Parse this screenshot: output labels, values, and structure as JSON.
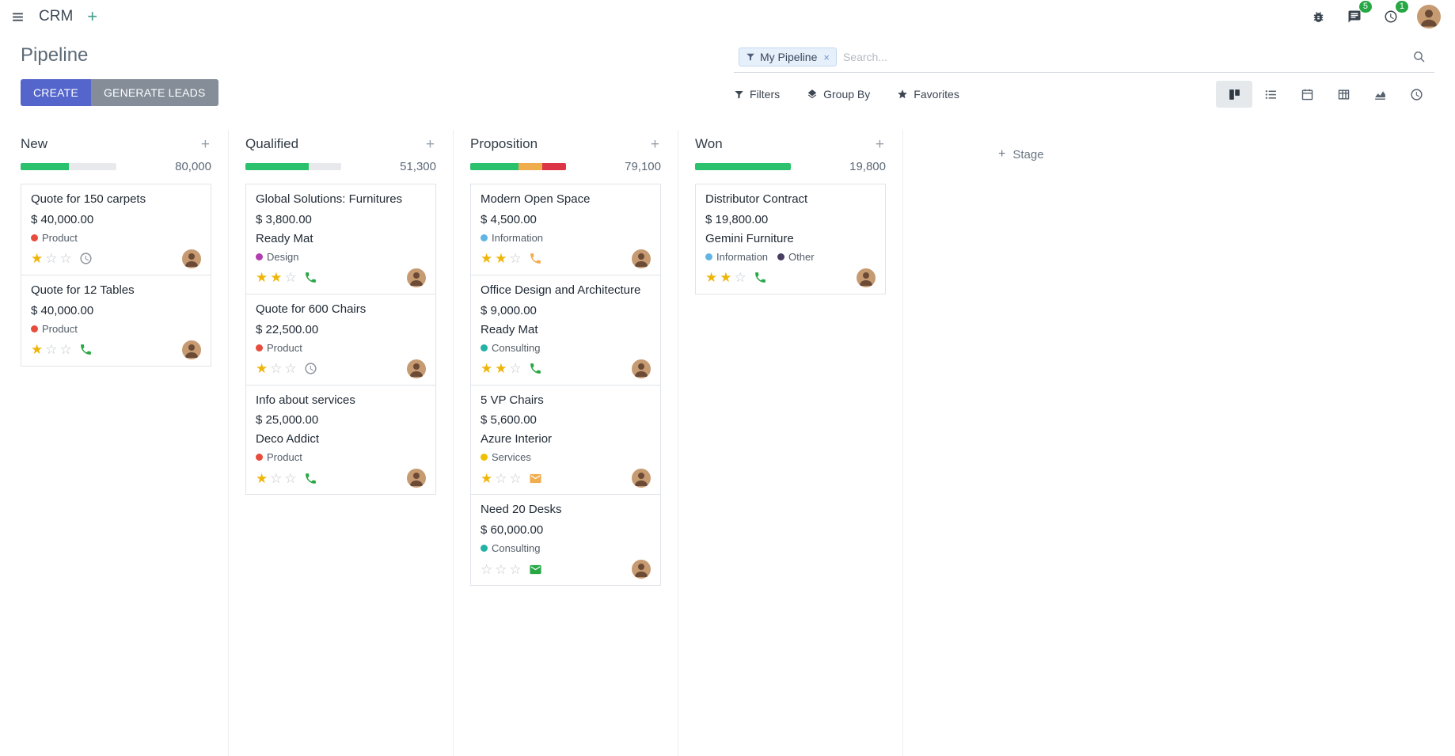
{
  "navbar": {
    "app_name": "CRM",
    "messages_badge": "5",
    "activities_badge": "1"
  },
  "control_panel": {
    "title": "Pipeline",
    "create_label": "CREATE",
    "generate_leads_label": "GENERATE LEADS",
    "search": {
      "facet_label": "My Pipeline",
      "placeholder": "Search...",
      "remove_symbol": "×"
    },
    "filters_label": "Filters",
    "group_by_label": "Group By",
    "favorites_label": "Favorites"
  },
  "icons": {
    "menu": "☰",
    "plus": "+",
    "close": "×",
    "star_filled": "★",
    "star_empty": "☆"
  },
  "colors": {
    "primary_button": "#5465cb",
    "secondary_button": "#848d98",
    "progress_track": "#e7e9ec",
    "progress_success": "#2bc16d",
    "progress_warning": "#f0ad4e",
    "progress_danger": "#dc3545",
    "star_gold": "#efb509",
    "badge_green": "#28a745"
  },
  "board": {
    "add_stage_label": "Stage",
    "columns": [
      {
        "name": "New",
        "total": "80,000",
        "progress": [
          {
            "color": "#2bc16d",
            "pct": 50
          }
        ],
        "cards": [
          {
            "title": "Quote for 150 carpets",
            "amount": "$ 40,000.00",
            "partner": "",
            "tags": [
              {
                "label": "Product",
                "color": "#e74c3c"
              }
            ],
            "stars": 1,
            "activity_icon": "clock-icon",
            "activity_color": "#8a929b"
          },
          {
            "title": "Quote for 12 Tables",
            "amount": "$ 40,000.00",
            "partner": "",
            "tags": [
              {
                "label": "Product",
                "color": "#e74c3c"
              }
            ],
            "stars": 1,
            "activity_icon": "phone-icon",
            "activity_color": "#28a745"
          }
        ]
      },
      {
        "name": "Qualified",
        "total": "51,300",
        "progress": [
          {
            "color": "#2bc16d",
            "pct": 66
          }
        ],
        "cards": [
          {
            "title": "Global Solutions: Furnitures",
            "amount": "$ 3,800.00",
            "partner": "Ready Mat",
            "tags": [
              {
                "label": "Design",
                "color": "#b13daf"
              }
            ],
            "stars": 2,
            "activity_icon": "phone-icon",
            "activity_color": "#28a745"
          },
          {
            "title": "Quote for 600 Chairs",
            "amount": "$ 22,500.00",
            "partner": "",
            "tags": [
              {
                "label": "Product",
                "color": "#e74c3c"
              }
            ],
            "stars": 1,
            "activity_icon": "clock-icon",
            "activity_color": "#8a929b"
          },
          {
            "title": "Info about services",
            "amount": "$ 25,000.00",
            "partner": "Deco Addict",
            "tags": [
              {
                "label": "Product",
                "color": "#e74c3c"
              }
            ],
            "stars": 1,
            "activity_icon": "phone-icon",
            "activity_color": "#28a745"
          }
        ]
      },
      {
        "name": "Proposition",
        "total": "79,100",
        "progress": [
          {
            "color": "#2bc16d",
            "pct": 50
          },
          {
            "color": "#f0ad4e",
            "pct": 25
          },
          {
            "color": "#dc3545",
            "pct": 25
          }
        ],
        "cards": [
          {
            "title": "Modern Open Space",
            "amount": "$ 4,500.00",
            "partner": "",
            "tags": [
              {
                "label": "Information",
                "color": "#62b5e5"
              }
            ],
            "stars": 2,
            "activity_icon": "phone-icon",
            "activity_color": "#f0ad4e"
          },
          {
            "title": "Office Design and Architecture",
            "amount": "$ 9,000.00",
            "partner": "Ready Mat",
            "tags": [
              {
                "label": "Consulting",
                "color": "#23b2a4"
              }
            ],
            "stars": 2,
            "activity_icon": "phone-icon",
            "activity_color": "#28a745"
          },
          {
            "title": "5 VP Chairs",
            "amount": "$ 5,600.00",
            "partner": "Azure Interior",
            "tags": [
              {
                "label": "Services",
                "color": "#efc000"
              }
            ],
            "stars": 1,
            "activity_icon": "envelope-icon",
            "activity_color": "#f0ad4e"
          },
          {
            "title": "Need 20 Desks",
            "amount": "$ 60,000.00",
            "partner": "",
            "tags": [
              {
                "label": "Consulting",
                "color": "#23b2a4"
              }
            ],
            "stars": 0,
            "activity_icon": "envelope-icon",
            "activity_color": "#28a745"
          }
        ]
      },
      {
        "name": "Won",
        "total": "19,800",
        "progress": [
          {
            "color": "#2bc16d",
            "pct": 100
          }
        ],
        "cards": [
          {
            "title": "Distributor Contract",
            "amount": "$ 19,800.00",
            "partner": "Gemini Furniture",
            "tags": [
              {
                "label": "Information",
                "color": "#62b5e5"
              },
              {
                "label": "Other",
                "color": "#473d63"
              }
            ],
            "stars": 2,
            "activity_icon": "phone-icon",
            "activity_color": "#28a745"
          }
        ]
      }
    ]
  }
}
